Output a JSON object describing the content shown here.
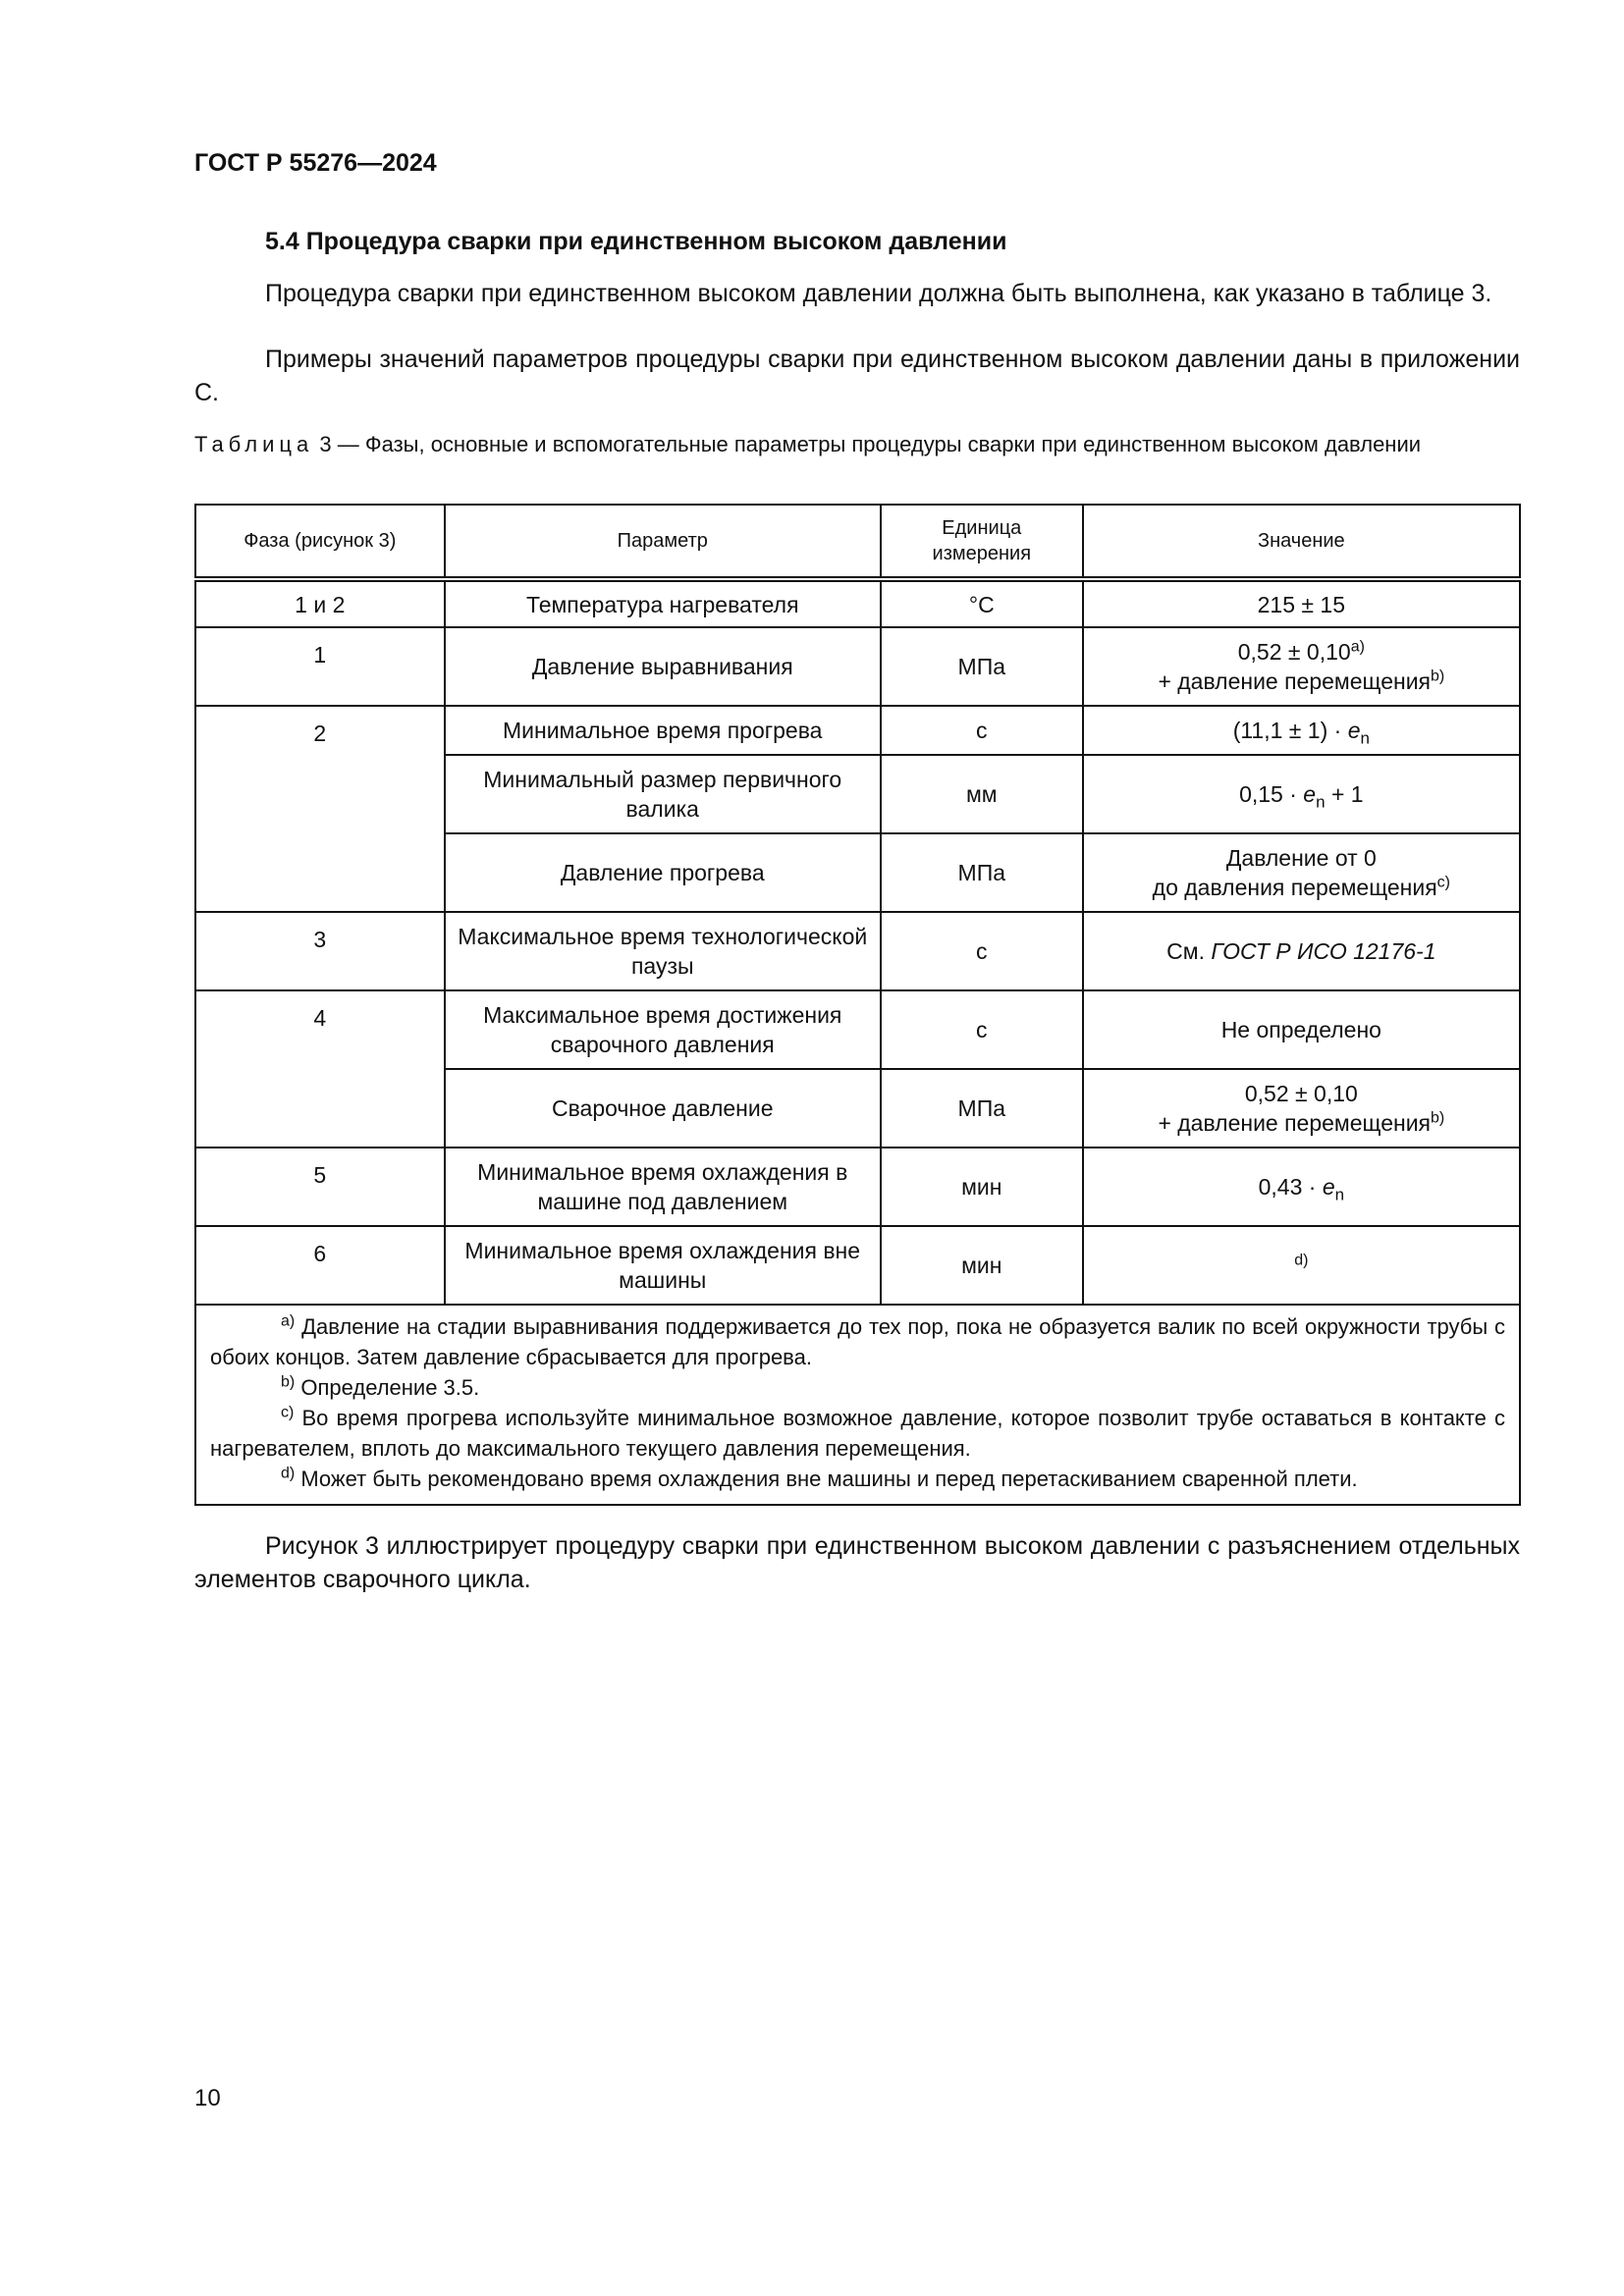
{
  "header": "ГОСТ Р 55276—2024",
  "section_title": "5.4 Процедура сварки при единственном высоком давлении",
  "paragraphs": [
    "Процедура сварки при единственном высоком давлении должна быть выполнена, как указано в таблице 3.",
    "Примеры значений параметров процедуры сварки при единственном высоком давлении даны в приложении С."
  ],
  "table": {
    "caption_label": "Таблица",
    "caption_text": "3 — Фазы, основные и вспомогательные параметры процедуры сварки при единственном высоком давлении",
    "headers": [
      "Фаза (рисунок 3)",
      "Параметр",
      "Единица измерения",
      "Значение"
    ],
    "rows": [
      {
        "phase": "1 и 2",
        "param": "Температура нагревателя",
        "unit": "°C",
        "value": "215 ± 15"
      },
      {
        "phase": "1",
        "param": "Давление выравнивания",
        "unit": "МПа",
        "value": "0,52 ± 0,10",
        "value_sup": "a)",
        "value2": "+ давление перемещения",
        "value2_sup": "b)"
      },
      {
        "phase": "2",
        "param": "Минимальное время прогрева",
        "unit": "с",
        "value": "(11,1 ± 1) · ",
        "value_var": "e",
        "value_sub": "n"
      },
      {
        "param": "Минимальный размер первичного валика",
        "unit": "мм",
        "value": "0,15 · ",
        "value_var": "e",
        "value_sub": "n",
        "value_tail": " + 1"
      },
      {
        "param": "Давление прогрева",
        "unit": "МПа",
        "value": "Давление от 0",
        "value2": "до давления перемещения",
        "value2_sup": "c)"
      },
      {
        "phase": "3",
        "param": "Максимальное время технологической паузы",
        "unit": "с",
        "value": "См. ",
        "value_ref": "ГОСТ Р ИСО 12176-1"
      },
      {
        "phase": "4",
        "param": "Максимальное время достижения сварочного давления",
        "unit": "с",
        "value": "Не определено"
      },
      {
        "param": "Сварочное давление",
        "unit": "МПа",
        "value": "0,52 ± 0,10",
        "value2": "+ давление перемещения",
        "value2_sup": "b)"
      },
      {
        "phase": "5",
        "param": "Минимальное время охлаждения в машине под давлением",
        "unit": "мин",
        "value": "0,43 · ",
        "value_var": "e",
        "value_sub": "n"
      },
      {
        "phase": "6",
        "param": "Минимальное время охлаждения вне машины",
        "unit": "мин",
        "value_sup": "d)"
      }
    ],
    "notes": [
      {
        "mark": "a)",
        "text": " Давление на стадии выравнивания поддерживается до тех пор, пока не образуется валик по всей окружности трубы с обоих концов. Затем давление сбрасывается для прогрева."
      },
      {
        "mark": "b)",
        "text": " Определение 3.5."
      },
      {
        "mark": "c)",
        "text": " Во время прогрева используйте минимальное возможное давление, которое позволит трубе оставаться в контакте с нагревателем, вплоть до максимального текущего давления перемещения."
      },
      {
        "mark": "d)",
        "text": " Может быть рекомендовано время охлаждения вне машины и перед перетаскиванием сваренной плети."
      }
    ]
  },
  "closing_paragraph": "Рисунок 3 иллюстрирует процедуру сварки при единственном высоком давлении с разъяснением отдельных элементов сварочного цикла.",
  "page_number": "10"
}
